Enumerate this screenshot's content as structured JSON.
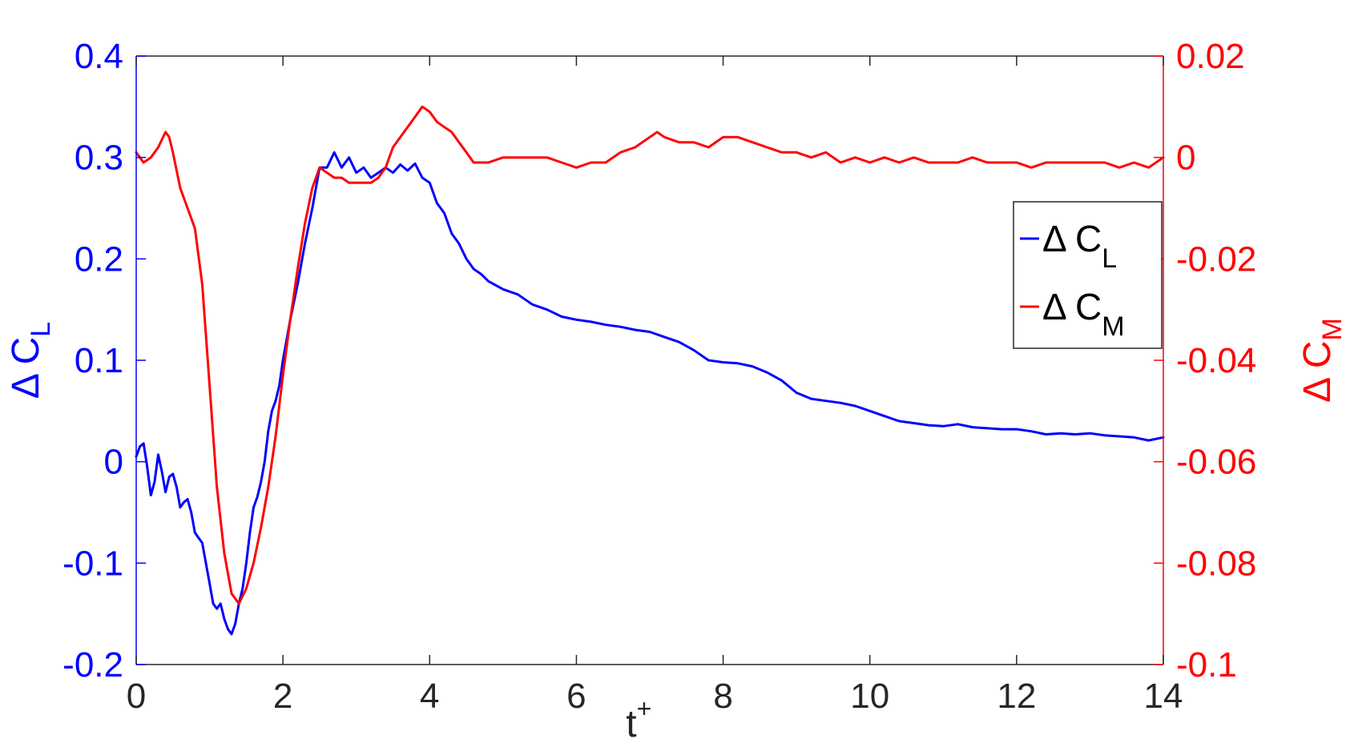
{
  "chart_data": {
    "type": "line",
    "title": "",
    "xlabel": {
      "base": "t",
      "sup": "+"
    },
    "ylabel_left": {
      "base": "Δ C",
      "sub": "L"
    },
    "ylabel_right": {
      "base": "Δ C",
      "sub": "M"
    },
    "xlim": [
      0,
      14
    ],
    "ylim_left": [
      -0.2,
      0.4
    ],
    "ylim_right": [
      -0.1,
      0.02
    ],
    "x_ticks": [
      "0",
      "2",
      "4",
      "6",
      "8",
      "10",
      "12",
      "14"
    ],
    "y_ticks_left": [
      "-0.2",
      "-0.1",
      "0",
      "0.1",
      "0.2",
      "0.3",
      "0.4"
    ],
    "y_ticks_right": [
      "-0.1",
      "-0.08",
      "-0.06",
      "-0.04",
      "-0.02",
      "0",
      "0.02"
    ],
    "grid": false,
    "legend_position": "right-middle",
    "colors": {
      "cl": "#0000ff",
      "cm": "#ff0000",
      "axis": "#262626"
    },
    "series": [
      {
        "name": "Δ C_L",
        "legend_base": "Δ C",
        "legend_sub": "L",
        "axis": "left",
        "x": [
          0,
          0.05,
          0.1,
          0.15,
          0.2,
          0.25,
          0.3,
          0.35,
          0.4,
          0.45,
          0.5,
          0.55,
          0.6,
          0.65,
          0.7,
          0.75,
          0.8,
          0.85,
          0.9,
          0.95,
          1.0,
          1.05,
          1.1,
          1.15,
          1.2,
          1.25,
          1.3,
          1.35,
          1.4,
          1.45,
          1.5,
          1.55,
          1.6,
          1.65,
          1.7,
          1.75,
          1.8,
          1.85,
          1.9,
          1.95,
          2.0,
          2.1,
          2.2,
          2.3,
          2.4,
          2.5,
          2.6,
          2.7,
          2.8,
          2.9,
          3.0,
          3.1,
          3.2,
          3.3,
          3.4,
          3.5,
          3.6,
          3.7,
          3.8,
          3.9,
          4.0,
          4.1,
          4.2,
          4.3,
          4.4,
          4.5,
          4.6,
          4.7,
          4.8,
          5.0,
          5.2,
          5.4,
          5.6,
          5.8,
          6.0,
          6.2,
          6.4,
          6.6,
          6.8,
          7.0,
          7.2,
          7.4,
          7.6,
          7.8,
          8.0,
          8.2,
          8.4,
          8.6,
          8.8,
          9.0,
          9.2,
          9.4,
          9.6,
          9.8,
          10.0,
          10.2,
          10.4,
          10.6,
          10.8,
          11.0,
          11.2,
          11.4,
          11.6,
          11.8,
          12.0,
          12.2,
          12.4,
          12.6,
          12.8,
          13.0,
          13.2,
          13.4,
          13.6,
          13.8,
          14.0
        ],
        "y": [
          0.005,
          0.015,
          0.018,
          -0.005,
          -0.033,
          -0.02,
          0.007,
          -0.01,
          -0.03,
          -0.015,
          -0.012,
          -0.025,
          -0.045,
          -0.04,
          -0.037,
          -0.05,
          -0.07,
          -0.075,
          -0.08,
          -0.1,
          -0.12,
          -0.14,
          -0.145,
          -0.14,
          -0.155,
          -0.165,
          -0.17,
          -0.16,
          -0.14,
          -0.125,
          -0.1,
          -0.07,
          -0.045,
          -0.035,
          -0.02,
          0.0,
          0.03,
          0.05,
          0.06,
          0.075,
          0.1,
          0.14,
          0.175,
          0.215,
          0.25,
          0.29,
          0.29,
          0.305,
          0.29,
          0.3,
          0.285,
          0.29,
          0.28,
          0.285,
          0.29,
          0.285,
          0.293,
          0.287,
          0.294,
          0.28,
          0.275,
          0.255,
          0.245,
          0.225,
          0.215,
          0.2,
          0.19,
          0.185,
          0.178,
          0.17,
          0.165,
          0.155,
          0.15,
          0.143,
          0.14,
          0.138,
          0.135,
          0.133,
          0.13,
          0.128,
          0.123,
          0.118,
          0.11,
          0.1,
          0.098,
          0.097,
          0.094,
          0.088,
          0.08,
          0.068,
          0.062,
          0.06,
          0.058,
          0.055,
          0.05,
          0.045,
          0.04,
          0.038,
          0.036,
          0.035,
          0.037,
          0.034,
          0.033,
          0.032,
          0.032,
          0.03,
          0.027,
          0.028,
          0.027,
          0.028,
          0.026,
          0.025,
          0.024,
          0.021,
          0.024
        ]
      },
      {
        "name": "Δ C_M",
        "legend_base": "Δ C",
        "legend_sub": "M",
        "axis": "right",
        "x": [
          0,
          0.1,
          0.2,
          0.3,
          0.4,
          0.45,
          0.5,
          0.6,
          0.7,
          0.8,
          0.9,
          1.0,
          1.1,
          1.2,
          1.3,
          1.4,
          1.5,
          1.6,
          1.7,
          1.8,
          1.9,
          2.0,
          2.1,
          2.2,
          2.3,
          2.4,
          2.5,
          2.6,
          2.7,
          2.8,
          2.9,
          3.0,
          3.1,
          3.2,
          3.3,
          3.4,
          3.5,
          3.6,
          3.7,
          3.8,
          3.9,
          4.0,
          4.1,
          4.2,
          4.3,
          4.4,
          4.5,
          4.6,
          4.7,
          4.8,
          5.0,
          5.2,
          5.4,
          5.6,
          5.8,
          6.0,
          6.2,
          6.4,
          6.6,
          6.8,
          7.0,
          7.1,
          7.2,
          7.4,
          7.6,
          7.8,
          8.0,
          8.2,
          8.4,
          8.6,
          8.8,
          9.0,
          9.2,
          9.4,
          9.6,
          9.8,
          10.0,
          10.2,
          10.4,
          10.6,
          10.8,
          11.0,
          11.2,
          11.4,
          11.6,
          11.8,
          12.0,
          12.2,
          12.4,
          12.6,
          12.8,
          13.0,
          13.2,
          13.4,
          13.6,
          13.8,
          14.0
        ],
        "y": [
          0.001,
          -0.001,
          0.0,
          0.002,
          0.005,
          0.004,
          0.001,
          -0.006,
          -0.01,
          -0.014,
          -0.025,
          -0.045,
          -0.065,
          -0.078,
          -0.086,
          -0.088,
          -0.085,
          -0.08,
          -0.073,
          -0.065,
          -0.055,
          -0.043,
          -0.032,
          -0.022,
          -0.013,
          -0.006,
          -0.002,
          -0.003,
          -0.004,
          -0.004,
          -0.005,
          -0.005,
          -0.005,
          -0.005,
          -0.004,
          -0.002,
          0.002,
          0.004,
          0.006,
          0.008,
          0.01,
          0.009,
          0.007,
          0.006,
          0.005,
          0.003,
          0.001,
          -0.001,
          -0.001,
          -0.001,
          0.0,
          0.0,
          0.0,
          0.0,
          -0.001,
          -0.002,
          -0.001,
          -0.001,
          0.001,
          0.002,
          0.004,
          0.005,
          0.004,
          0.003,
          0.003,
          0.002,
          0.004,
          0.004,
          0.003,
          0.002,
          0.001,
          0.001,
          0.0,
          0.001,
          -0.001,
          0.0,
          -0.001,
          0.0,
          -0.001,
          0.0,
          -0.001,
          -0.001,
          -0.001,
          0.0,
          -0.001,
          -0.001,
          -0.001,
          -0.002,
          -0.001,
          -0.001,
          -0.001,
          -0.001,
          -0.001,
          -0.002,
          -0.001,
          -0.002,
          0.0
        ]
      }
    ]
  }
}
